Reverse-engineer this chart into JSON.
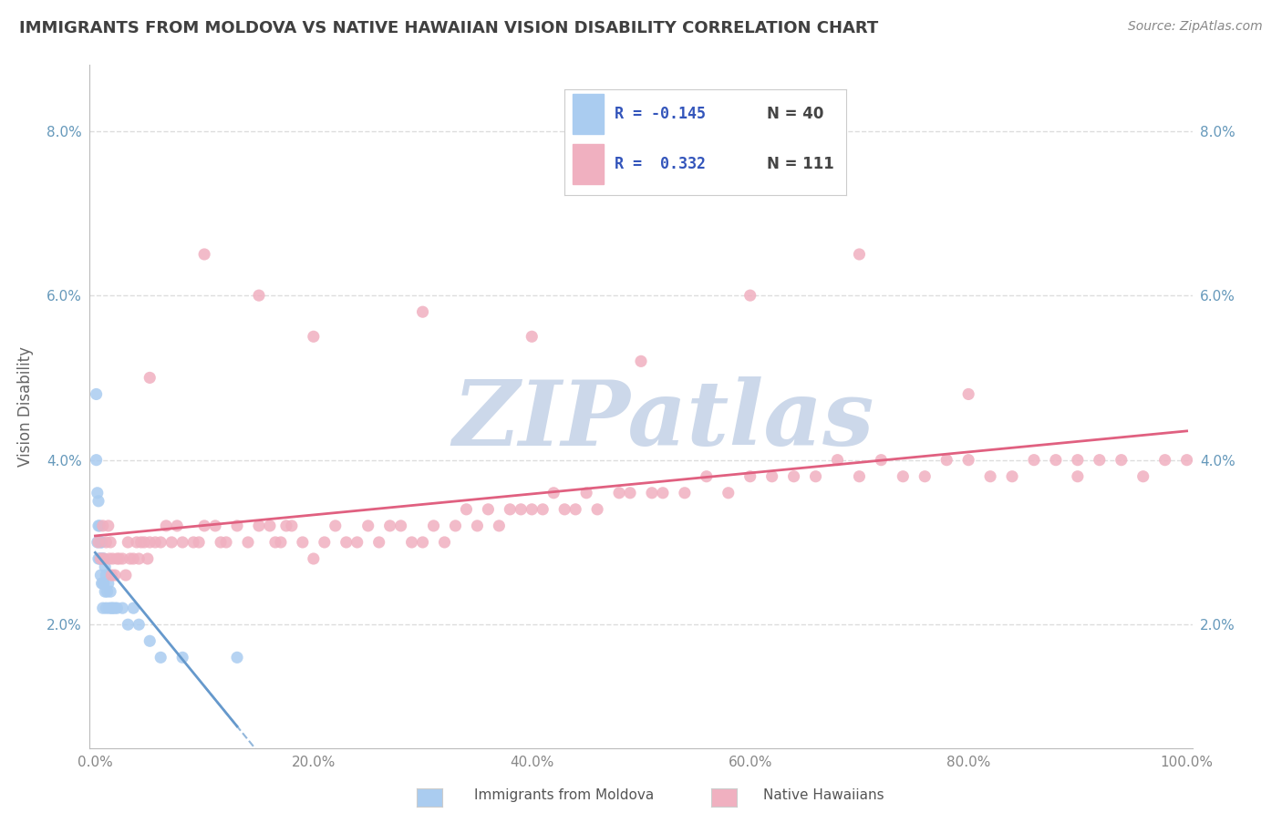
{
  "title": "IMMIGRANTS FROM MOLDOVA VS NATIVE HAWAIIAN VISION DISABILITY CORRELATION CHART",
  "source_text": "Source: ZipAtlas.com",
  "ylabel": "Vision Disability",
  "xlim": [
    -0.005,
    1.005
  ],
  "ylim": [
    0.005,
    0.088
  ],
  "yticks": [
    0.02,
    0.04,
    0.06,
    0.08
  ],
  "ytick_labels": [
    "2.0%",
    "4.0%",
    "6.0%",
    "8.0%"
  ],
  "xticks": [
    0.0,
    0.2,
    0.4,
    0.6,
    0.8,
    1.0
  ],
  "xtick_labels": [
    "0.0%",
    "20.0%",
    "40.0%",
    "60.0%",
    "80.0%",
    "100.0%"
  ],
  "series1_color": "#aaccf0",
  "series2_color": "#f0b0c0",
  "line1_color": "#6699cc",
  "line2_color": "#e06080",
  "watermark_color": "#ccd8ea",
  "background_color": "#ffffff",
  "title_color": "#404040",
  "axis_color": "#bbbbbb",
  "grid_color": "#dddddd",
  "source_color": "#888888",
  "legend_border_color": "#cccccc",
  "legend_r_color": "#3355bb",
  "legend_n_color": "#444444",
  "blue_x": [
    0.001,
    0.001,
    0.002,
    0.002,
    0.003,
    0.003,
    0.003,
    0.004,
    0.004,
    0.005,
    0.005,
    0.005,
    0.006,
    0.006,
    0.006,
    0.007,
    0.007,
    0.007,
    0.008,
    0.008,
    0.009,
    0.009,
    0.01,
    0.01,
    0.011,
    0.012,
    0.013,
    0.014,
    0.015,
    0.016,
    0.018,
    0.02,
    0.025,
    0.03,
    0.035,
    0.04,
    0.05,
    0.06,
    0.08,
    0.13
  ],
  "blue_y": [
    0.048,
    0.04,
    0.036,
    0.03,
    0.035,
    0.032,
    0.028,
    0.032,
    0.028,
    0.03,
    0.028,
    0.026,
    0.03,
    0.028,
    0.025,
    0.028,
    0.025,
    0.022,
    0.028,
    0.025,
    0.027,
    0.024,
    0.026,
    0.022,
    0.024,
    0.025,
    0.022,
    0.024,
    0.022,
    0.022,
    0.022,
    0.022,
    0.022,
    0.02,
    0.022,
    0.02,
    0.018,
    0.016,
    0.016,
    0.016
  ],
  "pink_x": [
    0.003,
    0.005,
    0.007,
    0.008,
    0.01,
    0.012,
    0.013,
    0.014,
    0.015,
    0.016,
    0.018,
    0.02,
    0.022,
    0.025,
    0.028,
    0.03,
    0.032,
    0.035,
    0.038,
    0.04,
    0.042,
    0.045,
    0.048,
    0.05,
    0.055,
    0.06,
    0.065,
    0.07,
    0.075,
    0.08,
    0.09,
    0.095,
    0.1,
    0.11,
    0.115,
    0.12,
    0.13,
    0.14,
    0.15,
    0.16,
    0.165,
    0.17,
    0.175,
    0.18,
    0.19,
    0.2,
    0.21,
    0.22,
    0.23,
    0.24,
    0.25,
    0.26,
    0.27,
    0.28,
    0.29,
    0.3,
    0.31,
    0.32,
    0.33,
    0.34,
    0.35,
    0.36,
    0.37,
    0.38,
    0.39,
    0.4,
    0.41,
    0.42,
    0.43,
    0.44,
    0.45,
    0.46,
    0.48,
    0.49,
    0.51,
    0.52,
    0.54,
    0.56,
    0.58,
    0.6,
    0.62,
    0.64,
    0.66,
    0.68,
    0.7,
    0.72,
    0.74,
    0.76,
    0.78,
    0.8,
    0.82,
    0.84,
    0.86,
    0.88,
    0.9,
    0.92,
    0.94,
    0.96,
    0.98,
    1.0,
    0.1,
    0.15,
    0.2,
    0.3,
    0.4,
    0.5,
    0.6,
    0.7,
    0.8,
    0.9,
    0.05
  ],
  "pink_y": [
    0.03,
    0.028,
    0.032,
    0.028,
    0.03,
    0.032,
    0.028,
    0.03,
    0.026,
    0.028,
    0.026,
    0.028,
    0.028,
    0.028,
    0.026,
    0.03,
    0.028,
    0.028,
    0.03,
    0.028,
    0.03,
    0.03,
    0.028,
    0.03,
    0.03,
    0.03,
    0.032,
    0.03,
    0.032,
    0.03,
    0.03,
    0.03,
    0.032,
    0.032,
    0.03,
    0.03,
    0.032,
    0.03,
    0.032,
    0.032,
    0.03,
    0.03,
    0.032,
    0.032,
    0.03,
    0.028,
    0.03,
    0.032,
    0.03,
    0.03,
    0.032,
    0.03,
    0.032,
    0.032,
    0.03,
    0.03,
    0.032,
    0.03,
    0.032,
    0.034,
    0.032,
    0.034,
    0.032,
    0.034,
    0.034,
    0.034,
    0.034,
    0.036,
    0.034,
    0.034,
    0.036,
    0.034,
    0.036,
    0.036,
    0.036,
    0.036,
    0.036,
    0.038,
    0.036,
    0.038,
    0.038,
    0.038,
    0.038,
    0.04,
    0.038,
    0.04,
    0.038,
    0.038,
    0.04,
    0.04,
    0.038,
    0.038,
    0.04,
    0.04,
    0.038,
    0.04,
    0.04,
    0.038,
    0.04,
    0.04,
    0.065,
    0.06,
    0.055,
    0.058,
    0.055,
    0.052,
    0.06,
    0.065,
    0.048,
    0.04,
    0.05
  ]
}
